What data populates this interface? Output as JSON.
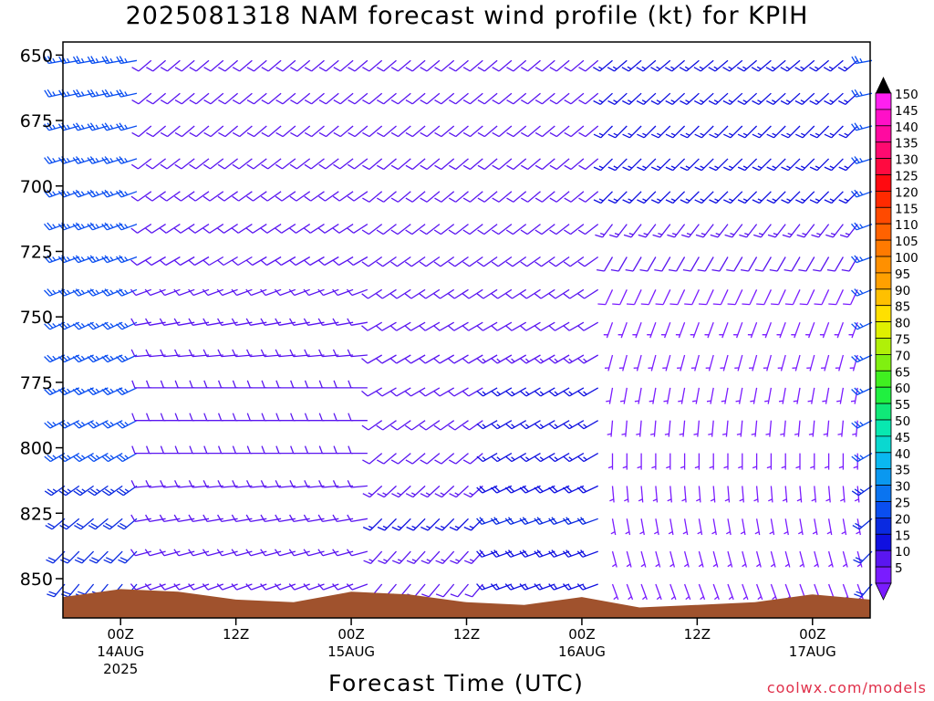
{
  "title": "2025081318 NAM forecast wind profile (kt) for KPIH",
  "x_axis_title": "Forecast Time (UTC)",
  "credit": "coolwx.com/models",
  "chart_data": {
    "type": "wind-barb-profile",
    "title": "2025081318 NAM forecast wind profile (kt) for KPIH",
    "xlabel": "Forecast Time (UTC)",
    "ylabel": "",
    "y_axis": {
      "ticks": [
        650,
        675,
        700,
        725,
        750,
        775,
        800,
        825,
        850
      ],
      "range_hPa": [
        645,
        865
      ],
      "inverted": true
    },
    "x_axis": {
      "ticks": [
        {
          "hour": 6,
          "label": "00Z",
          "sub": "14AUG",
          "sub2": "2025"
        },
        {
          "hour": 18,
          "label": "12Z",
          "sub": "",
          "sub2": ""
        },
        {
          "hour": 30,
          "label": "00Z",
          "sub": "15AUG",
          "sub2": ""
        },
        {
          "hour": 42,
          "label": "12Z",
          "sub": "",
          "sub2": ""
        },
        {
          "hour": 54,
          "label": "00Z",
          "sub": "16AUG",
          "sub2": ""
        },
        {
          "hour": 66,
          "label": "12Z",
          "sub": "",
          "sub2": ""
        },
        {
          "hour": 78,
          "label": "00Z",
          "sub": "17AUG",
          "sub2": ""
        }
      ],
      "range_forecast_hours": [
        0,
        84
      ]
    },
    "speed_colorbar": {
      "values": [
        5,
        10,
        15,
        20,
        25,
        30,
        35,
        40,
        45,
        50,
        55,
        60,
        65,
        70,
        75,
        80,
        85,
        90,
        95,
        100,
        105,
        110,
        115,
        120,
        125,
        130,
        135,
        140,
        145,
        150
      ],
      "colors": [
        "#7a1cff",
        "#5a16f0",
        "#1010e0",
        "#0a2ae0",
        "#0a4ef0",
        "#0a74f0",
        "#0a98f0",
        "#0ab8f0",
        "#0ad8d0",
        "#08e8b0",
        "#10e878",
        "#20f040",
        "#40f020",
        "#80f010",
        "#b0f008",
        "#e0f000",
        "#ffe000",
        "#ffc000",
        "#ffa000",
        "#ff9000",
        "#ff7a00",
        "#ff6200",
        "#ff4a00",
        "#ff2a00",
        "#ff0a10",
        "#ff0a40",
        "#ff0a70",
        "#ff0aa0",
        "#ff10c8",
        "#ff20f0"
      ]
    },
    "terrain_color": "#a0522d",
    "series": [
      {
        "period_hours": [
          0,
          9
        ],
        "levels_hPa": [
          650,
          675,
          700,
          725,
          750,
          775,
          800,
          825,
          850
        ],
        "speed_kt": [
          25,
          25,
          25,
          25,
          25,
          25,
          25,
          20,
          20
        ],
        "direction_deg": [
          260,
          255,
          250,
          250,
          245,
          245,
          240,
          230,
          220
        ]
      },
      {
        "period_hours": [
          9,
          33
        ],
        "levels_hPa": [
          650,
          675,
          700,
          725,
          750,
          775,
          800,
          825,
          850
        ],
        "speed_kt": [
          10,
          10,
          10,
          10,
          10,
          10,
          10,
          10,
          10
        ],
        "direction_deg": [
          230,
          230,
          235,
          240,
          260,
          270,
          270,
          260,
          250
        ]
      },
      {
        "period_hours": [
          33,
          45
        ],
        "levels_hPa": [
          650,
          675,
          700,
          725,
          750,
          775,
          800,
          825,
          850
        ],
        "speed_kt": [
          10,
          10,
          10,
          10,
          10,
          10,
          10,
          15,
          10
        ],
        "direction_deg": [
          230,
          230,
          230,
          235,
          240,
          240,
          230,
          225,
          220
        ]
      },
      {
        "period_hours": [
          45,
          57
        ],
        "levels_hPa": [
          650,
          675,
          700,
          725,
          750,
          775,
          800,
          825,
          850
        ],
        "speed_kt": [
          10,
          10,
          10,
          10,
          10,
          15,
          15,
          20,
          15
        ],
        "direction_deg": [
          230,
          230,
          230,
          235,
          240,
          240,
          240,
          250,
          250
        ]
      },
      {
        "period_hours": [
          57,
          84
        ],
        "levels_hPa": [
          650,
          675,
          700,
          725,
          750,
          775,
          800,
          825,
          850
        ],
        "speed_kt": [
          15,
          15,
          15,
          10,
          5,
          5,
          5,
          5,
          5
        ],
        "direction_deg": [
          230,
          225,
          225,
          210,
          200,
          190,
          180,
          170,
          160
        ]
      }
    ]
  }
}
